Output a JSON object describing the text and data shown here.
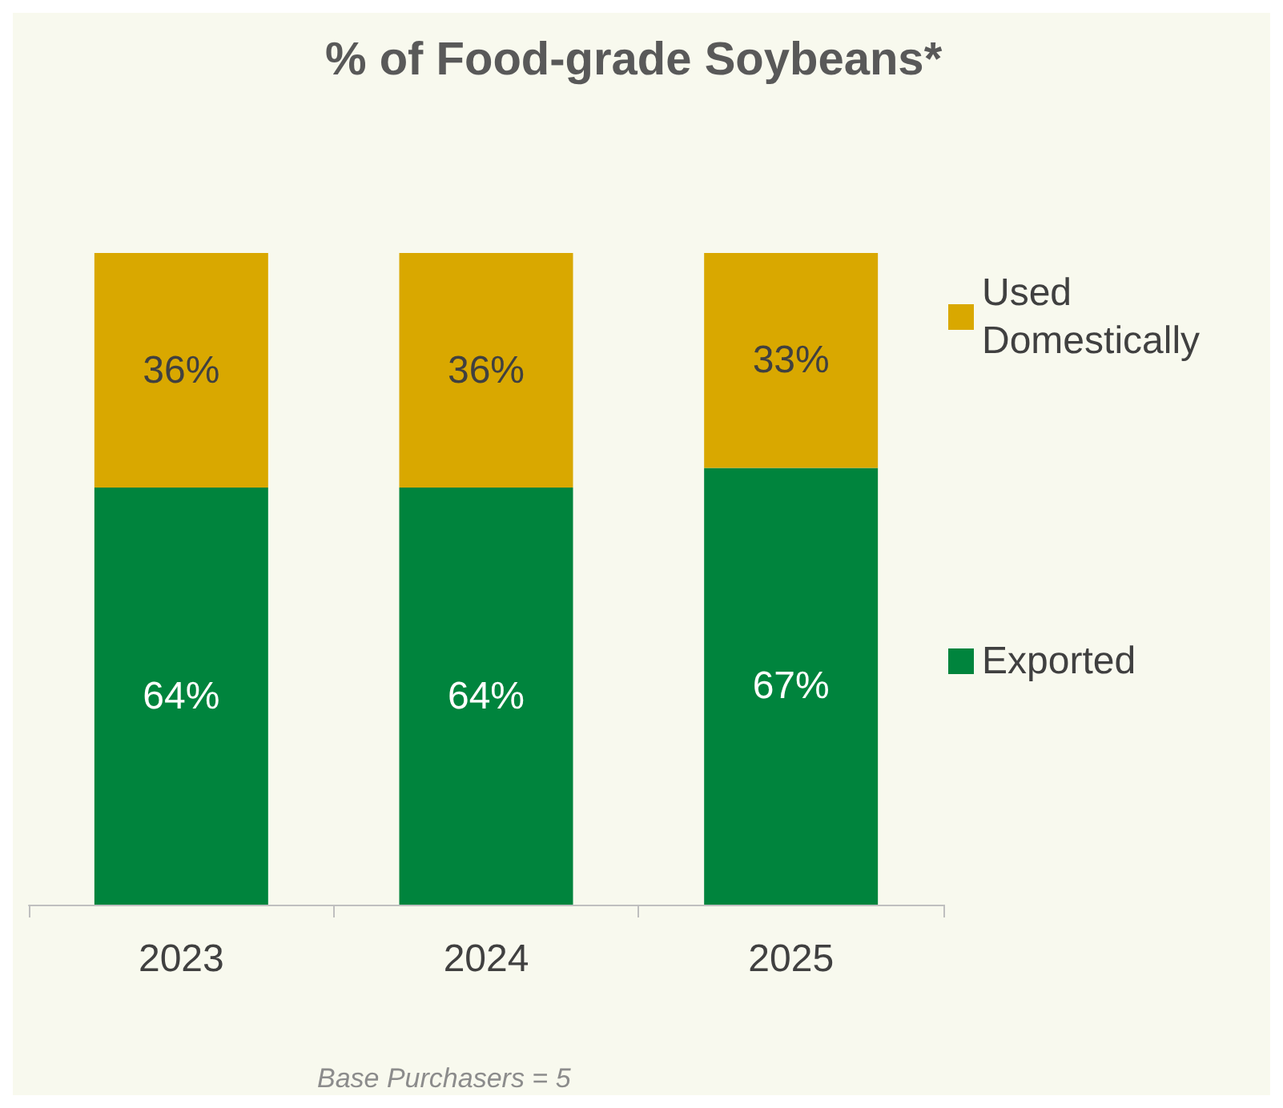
{
  "chart_data": {
    "type": "bar",
    "title": "% of Food-grade Soybeans*",
    "categories": [
      "2023",
      "2024",
      "2025"
    ],
    "stacked": true,
    "legend": "right",
    "series": [
      {
        "name": "Exported",
        "color": "#00843d",
        "values": [
          64,
          64,
          67
        ],
        "value_labels": [
          "64%",
          "64%",
          "67%"
        ]
      },
      {
        "name": "Used Domestically",
        "color": "#d9a800",
        "values": [
          36,
          36,
          33
        ],
        "value_labels": [
          "36%",
          "36%",
          "33%"
        ]
      }
    ],
    "annotations": [
      "Base Purchasers = 5"
    ]
  }
}
